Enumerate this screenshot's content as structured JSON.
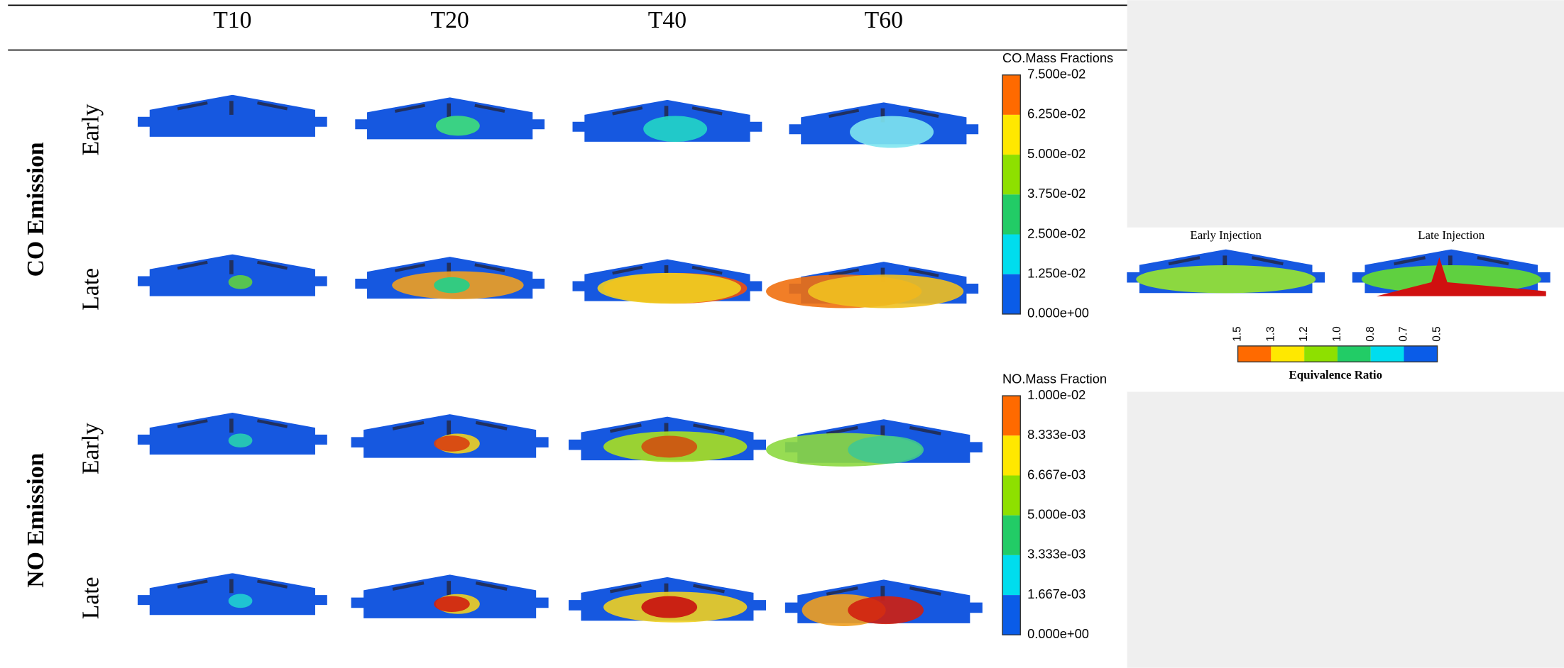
{
  "columns": [
    "T10",
    "T20",
    "T40",
    "T60"
  ],
  "groups": [
    {
      "label": "CO Emission",
      "rows": [
        "Early",
        "Late"
      ]
    },
    {
      "label": "NO Emission",
      "rows": [
        "Early",
        "Late"
      ]
    }
  ],
  "colorbars": [
    {
      "title": "CO.Mass Fractions",
      "ticks": [
        "7.500e-02",
        "6.250e-02",
        "5.000e-02",
        "3.750e-02",
        "2.500e-02",
        "1.250e-02",
        "0.000e+00"
      ]
    },
    {
      "title": "NO.Mass Fraction",
      "ticks": [
        "1.000e-02",
        "8.333e-03",
        "6.667e-03",
        "5.000e-03",
        "3.333e-03",
        "1.667e-03",
        "0.000e+00"
      ]
    }
  ],
  "inset": {
    "panels": [
      "Early Injection",
      "Late Injection"
    ],
    "scale_labels": [
      "1.5",
      "1.3",
      "1.2",
      "1.0",
      "0.8",
      "0.7",
      "0.5"
    ],
    "scale_title": "Equivalence Ratio"
  }
}
